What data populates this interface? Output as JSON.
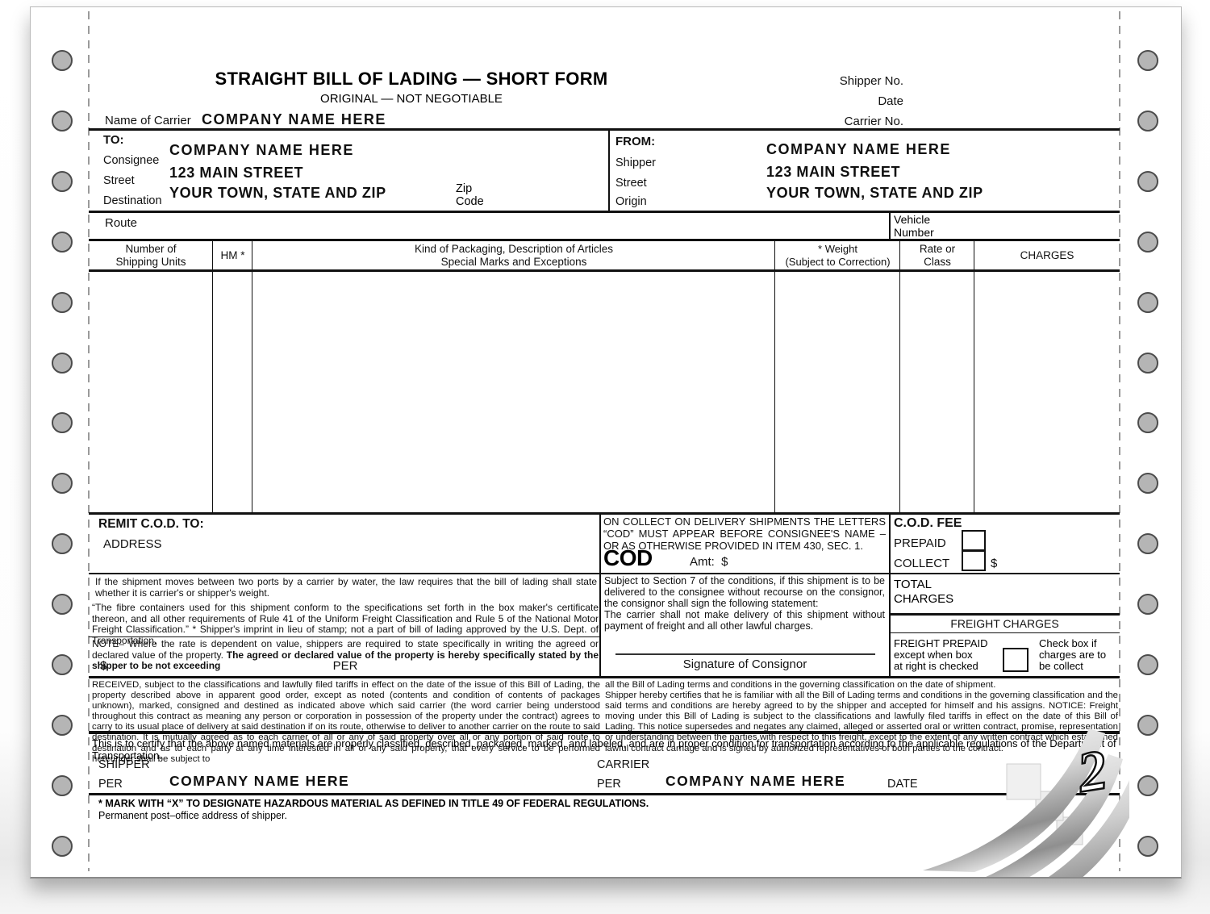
{
  "header": {
    "title": "STRAIGHT BILL OF LADING — SHORT FORM",
    "subtitle": "ORIGINAL — NOT NEGOTIABLE",
    "name_of_carrier_label": "Name of Carrier",
    "name_of_carrier_value": "COMPANY NAME HERE",
    "shipper_no_label": "Shipper No.",
    "date_label": "Date",
    "carrier_no_label": "Carrier No."
  },
  "to_box": {
    "heading": "TO:",
    "row_labels": [
      "Consignee",
      "Street",
      "Destination"
    ],
    "company": "COMPANY NAME HERE",
    "street": "123 MAIN STREET",
    "city": "YOUR TOWN, STATE AND ZIP",
    "zip_l1": "Zip",
    "zip_l2": "Code"
  },
  "from_box": {
    "heading": "FROM:",
    "row_labels": [
      "Shipper",
      "Street",
      "Origin"
    ],
    "company": "COMPANY NAME HERE",
    "street": "123 MAIN STREET",
    "city": "YOUR TOWN, STATE AND ZIP"
  },
  "route": {
    "label": "Route",
    "vehicle_l1": "Vehicle",
    "vehicle_l2": "Number"
  },
  "table": {
    "headers": [
      {
        "l1": "Number of",
        "l2": "Shipping Units"
      },
      {
        "l1": "HM *",
        "l2": ""
      },
      {
        "l1": "Kind of Packaging, Description of Articles",
        "l2": "Special Marks and Exceptions"
      },
      {
        "l1": "* Weight",
        "l2": "(Subject to Correction)"
      },
      {
        "l1": "Rate or",
        "l2": "Class"
      },
      {
        "l1": "CHARGES",
        "l2": ""
      }
    ]
  },
  "remit": {
    "heading": "REMIT C.O.D. TO:",
    "address_label": "ADDRESS"
  },
  "cod": {
    "notice": "ON COLLECT ON DELIVERY SHIPMENTS THE LETTERS “COD” MUST APPEAR BEFORE CONSIGNEE'S NAME – OR AS OTHERWISE PROVIDED IN ITEM 430, SEC. 1.",
    "big": "COD",
    "amt_label": "Amt:  $"
  },
  "cod_fee": {
    "heading": "C.O.D. FEE",
    "prepaid": "PREPAID",
    "collect": "COLLECT",
    "dollar": "$"
  },
  "notes": {
    "water": "If the shipment moves between two ports by a carrier by water, the law requires that the bill of lading shall state whether it is carrier's or shipper's weight.",
    "fibre": "“The fibre containers used for this shipment conform to the specifications set forth in the box maker's certificate thereon, and all other requirements of Rule 41 of the Uniform Freight Classification and Rule 5 of the National Motor Freight Classification.” *  Shipper's imprint in lieu of stamp; not a part of bill of lading approved by the U.S. Dept. of Transportation.",
    "note_normal": "NOTE– Where the rate is dependent on value, shippers are required to state specifically in writing the agreed or declared value of the property. ",
    "note_bold": "The agreed or declared value of the property is hereby specifically stated by the shipper to be not exceeding",
    "dollar": "$",
    "per": "PER"
  },
  "section7": {
    "p1": "Subject to Section 7 of the conditions, if this shipment is to be delivered to the consignee without recourse on the consignor, the consignor shall sign the following statement:",
    "p2": "The carrier shall not make delivery of this shipment without payment of freight and all other lawful charges.",
    "signature_label": "Signature of Consignor"
  },
  "charges": {
    "total_l1": "TOTAL",
    "total_l2": "CHARGES",
    "freight_heading": "FREIGHT CHARGES",
    "prepaid_l1": "FREIGHT PREPAID",
    "prepaid_l2": "except when box",
    "prepaid_l3": "at right is checked",
    "collect_l1": "Check box if",
    "collect_l2": "charges are to",
    "collect_l3": "be collect"
  },
  "received": {
    "left": "RECEIVED, subject to the classifications and lawfully filed tariffs in effect on the date of the issue of this Bill of Lading, the property described above in apparent good order, except as noted (contents and condition of contents of packages unknown), marked, consigned and destined as indicated above which said carrier (the word carrier being understood throughout this contract as meaning any person or corporation in possession of the property under the contract) agrees to carry to its usual place of delivery at said destination if on its route, otherwise to deliver to another carrier on the route to said destination. It is mutually agreed as to each carrier of all or any of said property over all or any portion of said route to destination and as to each party at any time interested in all or any said property, that every service to be performed hereunder shall be subject to",
    "right1": "all the Bill of Lading terms and conditions in the governing classification on the date of shipment.",
    "right2": "Shipper hereby certifies that he is familiar with all the Bill of Lading terms and conditions in the governing classification and the said terms and conditions are hereby agreed to by the shipper and accepted for himself and his assigns.  NOTICE: Freight moving under this Bill of Lading is subject to the classifications and lawfully filed tariffs in effect on the date of this Bill of Lading. This notice supersedes and negates any claimed, alleged or asserted oral or written contract, promise, representation or understanding between the parties with respect to this freight, except to the extent of any written contract which established lawful contract carriage and is signed by authorized representatives of both parties to the contract."
  },
  "certify": "This is to certify that the above named materials are properly classified, described, packaged, marked, and labeled, and are in proper condition for transportation according to the applicable regulations of the Department of Transportation.",
  "signatures": {
    "shipper_label": "SHIPPER",
    "shipper_per": "PER",
    "shipper_company": "COMPANY NAME HERE",
    "carrier_label": "CARRIER",
    "carrier_per": "PER",
    "carrier_company": "COMPANY NAME HERE",
    "date_label": "DATE"
  },
  "footer": {
    "hazmat": "* MARK  WITH “X” TO DESIGNATE HAZARDOUS MATERIAL AS DEFINED IN TITLE 49 OF FEDERAL REGULATIONS.",
    "permanent": "Permanent post–office address of shipper."
  },
  "page_number": "2",
  "colors": {
    "hole_fill": "#b5b5b5",
    "hole_border": "#4c4c4c",
    "line": "#111111",
    "paper": "#ffffff"
  }
}
